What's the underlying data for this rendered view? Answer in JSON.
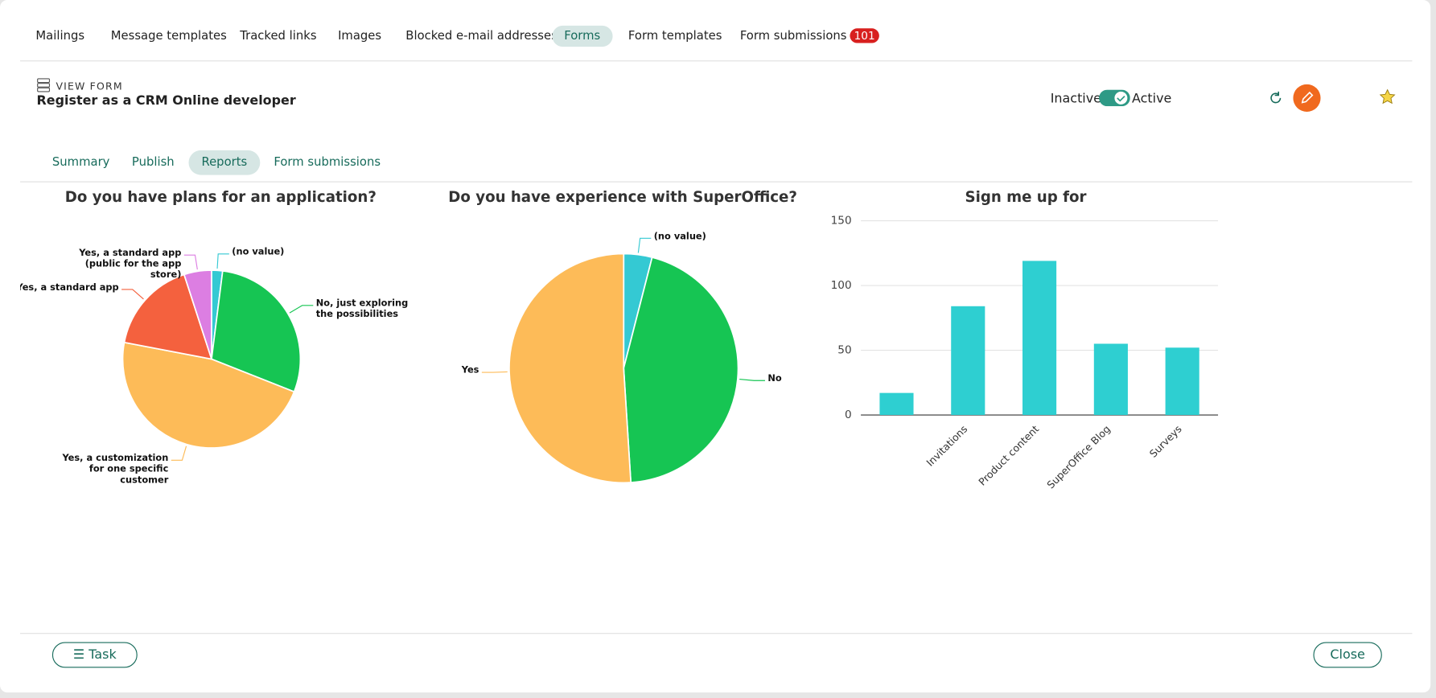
{
  "nav": {
    "tabs": [
      "Mailings",
      "Message templates",
      "Tracked links",
      "Images",
      "Blocked e-mail addresses",
      "Forms",
      "Form templates",
      "Form submissions"
    ],
    "badge": 101
  },
  "header": {
    "kicker": "VIEW FORM",
    "title": "Register as a CRM Online developer",
    "toggle_off": "Inactive",
    "toggle_on": "Active"
  },
  "subtabs": [
    "Summary",
    "Publish",
    "Reports",
    "Form submissions"
  ],
  "chart_data": [
    {
      "type": "pie",
      "title": "Do you have plans for an application?",
      "categories": [
        "(no value)",
        "No, just exploring the possibilities",
        "Yes, a customization for one specific customer",
        "Yes, a standard app",
        "Yes, a standard app (public for the app store)"
      ],
      "values": [
        2,
        29,
        47,
        17,
        5
      ],
      "colors": [
        "#34c9d3",
        "#16c553",
        "#fdbb58",
        "#f4613e",
        "#dc7ee2"
      ]
    },
    {
      "type": "pie",
      "title": "Do you have experience with SuperOffice?",
      "categories": [
        "(no value)",
        "No",
        "Yes"
      ],
      "values": [
        4,
        45,
        51
      ],
      "colors": [
        "#34c9d3",
        "#16c553",
        "#fdbb58"
      ]
    },
    {
      "type": "bar",
      "title": "Sign me up for",
      "categories": [
        null,
        "Invitations",
        "Product content",
        "SuperOffice Blog",
        "Surveys"
      ],
      "values": [
        17,
        84,
        119,
        55,
        52
      ],
      "color": "#2ecfd1",
      "ylim": [
        0,
        150
      ],
      "yticks": [
        0,
        50,
        100,
        150
      ],
      "grid": true
    }
  ],
  "footer": {
    "task": "Task",
    "close": "Close"
  }
}
